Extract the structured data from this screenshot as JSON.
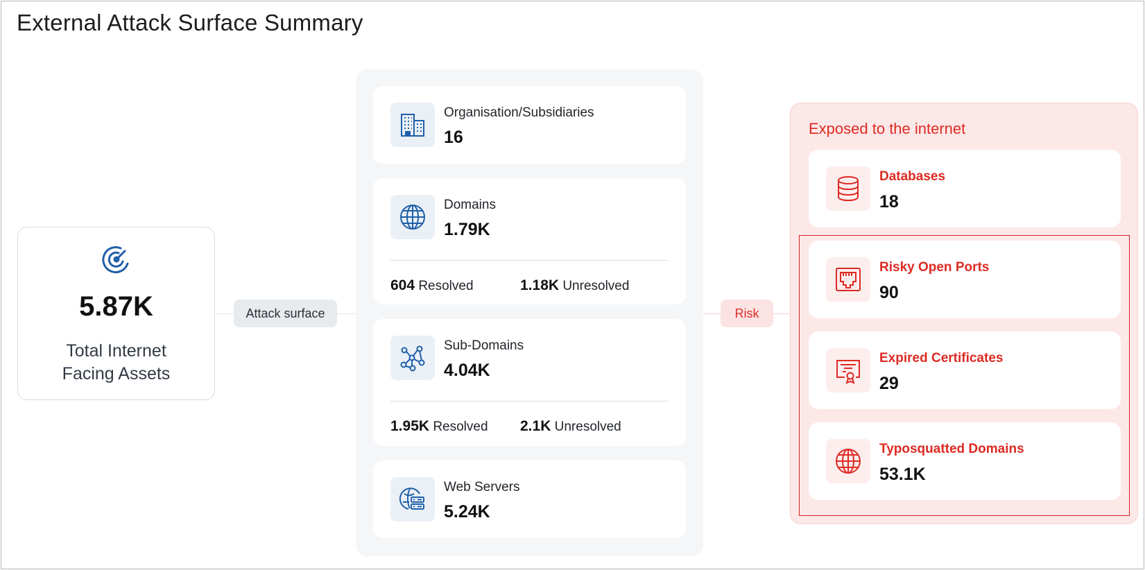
{
  "title": "External Attack Surface Summary",
  "colors": {
    "accent_blue": "#1e5fa8",
    "risk_red": "#dd2a22"
  },
  "total": {
    "icon": "radar-icon",
    "value": "5.87K",
    "label_line1": "Total Internet",
    "label_line2": "Facing Assets"
  },
  "connectors": {
    "attack_surface": "Attack surface",
    "risk": "Risk"
  },
  "assets": {
    "organisations": {
      "icon": "building-icon",
      "label": "Organisation/Subsidiaries",
      "value": "16"
    },
    "domains": {
      "icon": "globe-icon",
      "label": "Domains",
      "value": "1.79K",
      "resolved_value": "604",
      "resolved_label": "Resolved",
      "unresolved_value": "1.18K",
      "unresolved_label": "Unresolved"
    },
    "subdomains": {
      "icon": "network-icon",
      "label": "Sub-Domains",
      "value": "4.04K",
      "resolved_value": "1.95K",
      "resolved_label": "Resolved",
      "unresolved_value": "2.1K",
      "unresolved_label": "Unresolved"
    },
    "web_servers": {
      "icon": "web-server-icon",
      "label": "Web Servers",
      "value": "5.24K"
    }
  },
  "exposed": {
    "title": "Exposed to the internet",
    "databases": {
      "icon": "database-icon",
      "label": "Databases",
      "value": "18"
    },
    "open_ports": {
      "icon": "ethernet-port-icon",
      "label": "Risky Open Ports",
      "value": "90"
    },
    "certificates": {
      "icon": "certificate-icon",
      "label": "Expired Certificates",
      "value": "29"
    },
    "typosquatted": {
      "icon": "globe-icon",
      "label": "Typosquatted Domains",
      "value": "53.1K"
    }
  }
}
